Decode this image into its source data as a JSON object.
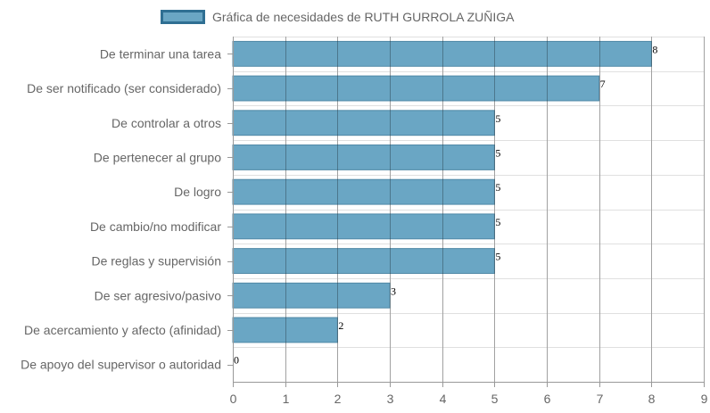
{
  "chart_data": {
    "type": "bar",
    "orientation": "horizontal",
    "categories": [
      "De terminar una tarea",
      "De ser notificado (ser considerado)",
      "De controlar a otros",
      "De pertenecer al grupo",
      "De logro",
      "De cambio/no modificar",
      "De reglas y supervisión",
      "De ser agresivo/pasivo",
      "De acercamiento y afecto (afinidad)",
      "De apoyo del supervisor o autoridad"
    ],
    "series": [
      {
        "name": "Gráfica de necesidades de RUTH GURROLA ZUÑIGA",
        "values": [
          8,
          7,
          5,
          5,
          5,
          5,
          5,
          3,
          2,
          0
        ]
      }
    ],
    "xlim": [
      0,
      9
    ],
    "x_ticks": [
      0,
      1,
      2,
      3,
      4,
      5,
      6,
      7,
      8,
      9
    ],
    "grid": true,
    "legend_position": "top",
    "data_labels": true,
    "colors": {
      "bar_fill": "#6aa6c4",
      "bar_border": "#4f88a6",
      "legend_fill": "#6aa6c4",
      "legend_border": "#2f6f93",
      "grid": "#e0e0e0",
      "axis": "#999999",
      "text": "#666666",
      "data_label": "#000000"
    }
  }
}
